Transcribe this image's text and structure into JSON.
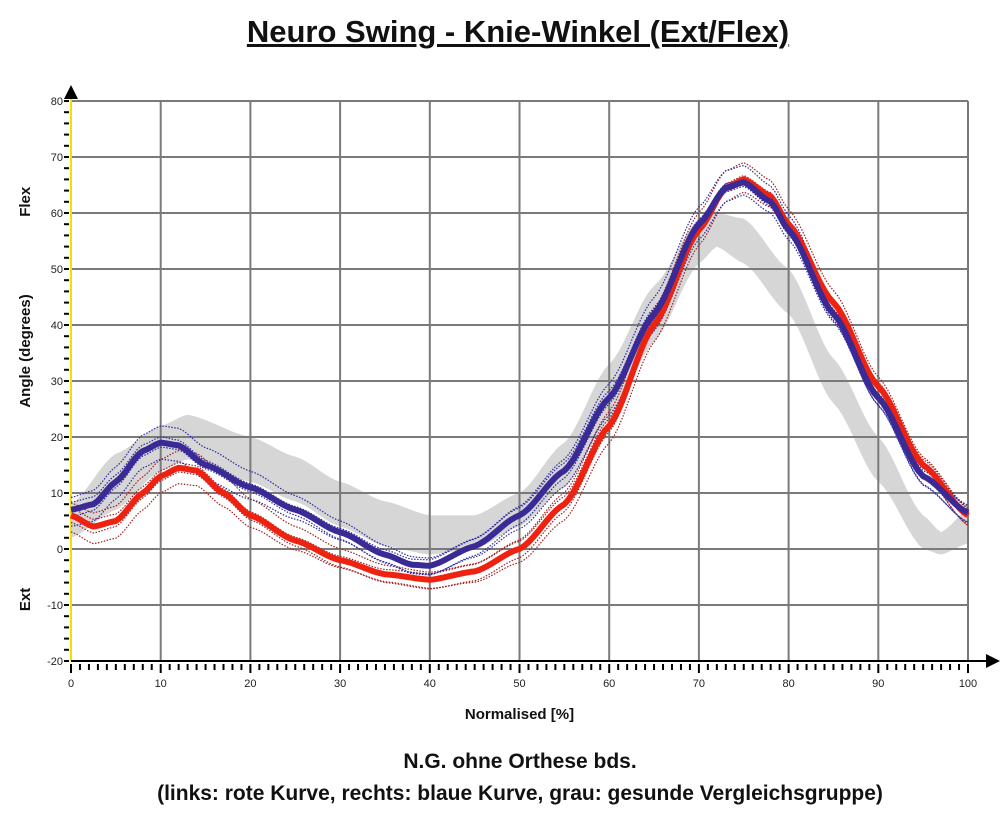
{
  "chart_data": {
    "type": "line",
    "title": "Neuro Swing - Knie-Winkel (Ext/Flex)",
    "xlabel": "Normalised [%]",
    "ylabel": "Angle (degrees)",
    "ylabel_top": "Flex",
    "ylabel_bottom": "Ext",
    "xlim": [
      0,
      100
    ],
    "ylim": [
      -20,
      80
    ],
    "xticks": [
      0,
      10,
      20,
      30,
      40,
      50,
      60,
      70,
      80,
      90,
      100
    ],
    "yticks": [
      -20,
      -10,
      0,
      10,
      20,
      30,
      40,
      50,
      60,
      70,
      80
    ],
    "grid": true,
    "caption1": "N.G. ohne Orthese bds.",
    "caption2": "(links: rote Kurve, rechts: blaue Kurve, grau: gesunde Vergleichsgruppe)",
    "series": [
      {
        "name": "links (rot)",
        "color": "#ee2211",
        "x": [
          0,
          2.5,
          5,
          8,
          10,
          12,
          14,
          17,
          20,
          25,
          30,
          35,
          40,
          45,
          50,
          55,
          60,
          65,
          70,
          73,
          75,
          78,
          80,
          85,
          90,
          95,
          100
        ],
        "values": [
          6,
          4,
          5,
          10,
          13,
          14.5,
          14,
          10,
          6,
          1.5,
          -2,
          -4.5,
          -5.5,
          -4,
          0,
          8,
          22,
          40,
          57,
          64.5,
          66,
          63,
          58,
          44,
          29,
          15,
          6
        ]
      },
      {
        "name": "rechts (blau)",
        "color": "#3a2a96",
        "x": [
          0,
          2.5,
          5,
          8,
          10,
          12,
          15,
          20,
          25,
          30,
          35,
          38,
          40,
          45,
          50,
          55,
          60,
          65,
          70,
          73,
          75,
          78,
          80,
          85,
          90,
          95,
          100
        ],
        "values": [
          7,
          8,
          12,
          17.5,
          19,
          18.5,
          15,
          11,
          7,
          3,
          -1,
          -2.8,
          -3,
          0.5,
          6,
          14,
          27,
          42,
          58,
          64.5,
          65.5,
          62,
          57,
          42,
          27,
          13,
          6.5
        ]
      }
    ],
    "band": {
      "name": "gesunde Vergleichsgruppe (grau)",
      "color": "#d6d6d6",
      "x": [
        0,
        5,
        10,
        13,
        20,
        25,
        30,
        35,
        40,
        45,
        50,
        55,
        60,
        65,
        70,
        72,
        75,
        80,
        85,
        90,
        95,
        97,
        100
      ],
      "mean": [
        5,
        12,
        18,
        20,
        16,
        12.5,
        8,
        4.5,
        2.5,
        3,
        7,
        15,
        28,
        42,
        55,
        57,
        55,
        46,
        30,
        16,
        3,
        1,
        4
      ],
      "halfwidth": [
        3,
        5,
        4,
        4,
        4,
        4,
        4,
        4,
        3.5,
        3,
        3,
        4,
        5,
        5,
        4,
        3,
        4,
        4,
        4,
        4,
        3,
        2,
        3
      ]
    }
  }
}
